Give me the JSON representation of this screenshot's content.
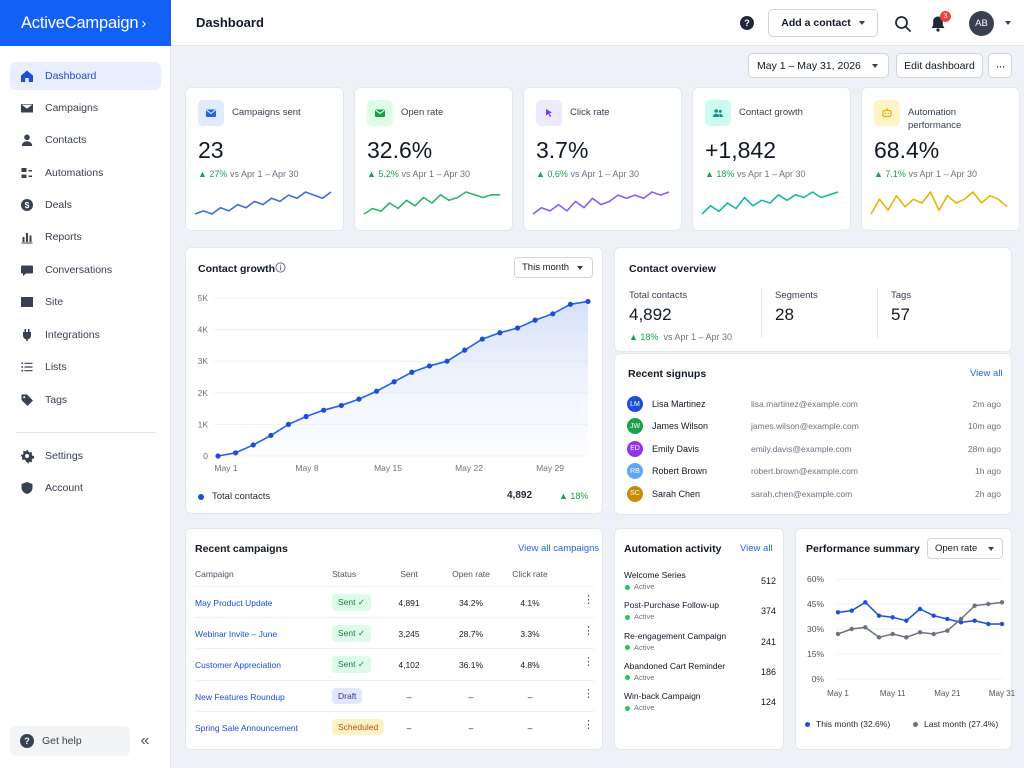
{
  "app": {
    "logo_text": "ActiveCampaign",
    "logo_mark": "›"
  },
  "sidebar": {
    "items": [
      {
        "label": "Dashboard",
        "icon": "home-icon",
        "active": true
      },
      {
        "label": "Campaigns",
        "icon": "mail-icon"
      },
      {
        "label": "Contacts",
        "icon": "person-icon"
      },
      {
        "label": "Automations",
        "icon": "automation-icon"
      },
      {
        "label": "Deals",
        "icon": "dollar-icon"
      },
      {
        "label": "Reports",
        "icon": "bar-chart-icon"
      },
      {
        "label": "Conversations",
        "icon": "chat-icon"
      },
      {
        "label": "Site",
        "icon": "browser-icon"
      },
      {
        "label": "Integrations",
        "icon": "plug-icon"
      },
      {
        "label": "Lists",
        "icon": "list-icon"
      },
      {
        "label": "Tags",
        "icon": "tag-icon"
      }
    ],
    "bottom_items": [
      {
        "label": "Settings",
        "icon": "gear-icon"
      },
      {
        "label": "Account",
        "icon": "shield-icon"
      }
    ],
    "help_label": "Get help",
    "collapse_glyph": "«"
  },
  "header": {
    "title": "Dashboard",
    "help_glyph": "?",
    "add_contact_label": "Add a contact",
    "notification_count": "3",
    "avatar_initials": "AB"
  },
  "toolbar": {
    "date_range": "May 1 – May 31, 2026",
    "edit_label": "Edit dashboard",
    "more_glyph": "···"
  },
  "kpis": [
    {
      "label": "Campaigns sent",
      "value": "23",
      "delta": "27%",
      "period": "vs Apr 1 – Apr 30",
      "icon": "mail-icon",
      "color": "#2563eb",
      "bg": "#e0ebff"
    },
    {
      "label": "Open rate",
      "value": "32.6%",
      "delta": "5.2%",
      "period": "vs Apr 1 – Apr 30",
      "icon": "mail-open-icon",
      "color": "#16a34a",
      "bg": "#dcfce7"
    },
    {
      "label": "Click rate",
      "value": "3.7%",
      "delta": "0.6%",
      "period": "vs Apr 1 – Apr 30",
      "icon": "cursor-click-icon",
      "color": "#7c3aed",
      "bg": "#ede9fe"
    },
    {
      "label": "Contact growth",
      "value": "+1,842",
      "delta": "18%",
      "period": "vs Apr 1 – Apr 30",
      "icon": "people-icon",
      "color": "#0d9488",
      "bg": "#ccfbf1"
    },
    {
      "label": "Automation performance",
      "value": "68.4%",
      "delta": "7.1%",
      "period": "vs Apr 1 – Apr 30",
      "icon": "robot-icon",
      "color": "#eab308",
      "bg": "#fef3c7"
    }
  ],
  "contact_growth": {
    "title": "Contact growth",
    "range_select": "This month",
    "legend_label": "Total contacts",
    "legend_value": "4,892",
    "legend_delta": "18%"
  },
  "contact_overview": {
    "title": "Contact overview",
    "stats": [
      {
        "label": "Total contacts",
        "value": "4,892"
      },
      {
        "label": "Segments",
        "value": "28"
      },
      {
        "label": "Tags",
        "value": "57"
      }
    ],
    "total_delta": "18%",
    "total_period": "vs Apr 1 – Apr 30"
  },
  "recent_signups": {
    "title": "Recent signups",
    "view_all": "View all",
    "rows": [
      {
        "initials": "LM",
        "name": "Lisa Martinez",
        "email": "lisa.martinez@example.com",
        "time": "2m ago",
        "color": "#1d4ed8"
      },
      {
        "initials": "JW",
        "name": "James Wilson",
        "email": "james.wilson@example.com",
        "time": "10m ago",
        "color": "#16a34a"
      },
      {
        "initials": "ED",
        "name": "Emily Davis",
        "email": "emily.davis@example.com",
        "time": "28m ago",
        "color": "#9333ea"
      },
      {
        "initials": "RB",
        "name": "Robert Brown",
        "email": "robert.brown@example.com",
        "time": "1h ago",
        "color": "#60a5fa"
      },
      {
        "initials": "SC",
        "name": "Sarah Chen",
        "email": "sarah.chen@example.com",
        "time": "2h ago",
        "color": "#ca8a04"
      }
    ]
  },
  "recent_campaigns": {
    "title": "Recent campaigns",
    "view_all": "View all campaigns",
    "columns": [
      "Campaign",
      "Status",
      "Sent",
      "Open rate",
      "Click rate"
    ],
    "rows": [
      {
        "name": "May Product Update",
        "status": "Sent ✓",
        "status_type": "sent",
        "sent": "4,891",
        "open": "34.2%",
        "click": "4.1%"
      },
      {
        "name": "Webinar Invite – June",
        "status": "Sent ✓",
        "status_type": "sent",
        "sent": "3,245",
        "open": "28.7%",
        "click": "3.3%"
      },
      {
        "name": "Customer Appreciation",
        "status": "Sent ✓",
        "status_type": "sent",
        "sent": "4,102",
        "open": "36.1%",
        "click": "4.8%"
      },
      {
        "name": "New Features Roundup",
        "status": "Draft",
        "status_type": "draft",
        "sent": "–",
        "open": "–",
        "click": "–"
      },
      {
        "name": "Spring Sale Announcement",
        "status": "Scheduled",
        "status_type": "sched",
        "sent": "–",
        "open": "–",
        "click": "–"
      }
    ]
  },
  "automation_activity": {
    "title": "Automation activity",
    "view_all": "View all",
    "rows": [
      {
        "name": "Welcome Series",
        "status": "Active",
        "count": "512"
      },
      {
        "name": "Post-Purchase Follow-up",
        "status": "Active",
        "count": "374"
      },
      {
        "name": "Re-engagement Campaign",
        "status": "Active",
        "count": "241"
      },
      {
        "name": "Abandoned Cart Reminder",
        "status": "Active",
        "count": "186"
      },
      {
        "name": "Win-back Campaign",
        "status": "Active",
        "count": "124"
      }
    ]
  },
  "performance_summary": {
    "title": "Performance summary",
    "metric_select": "Open rate",
    "legend_this": "This month (32.6%)",
    "legend_last": "Last month (27.4%)"
  },
  "chart_data": [
    {
      "type": "line",
      "title": "Contact growth",
      "x_ticks": [
        "May 1",
        "May 8",
        "May 15",
        "May 22",
        "May 29"
      ],
      "y_ticks": [
        "5K",
        "4K",
        "3K",
        "2K",
        "1K",
        "0"
      ],
      "ylim": [
        0,
        5000
      ],
      "x": [
        1,
        2,
        3,
        4,
        5,
        6,
        7,
        8,
        9,
        10,
        11,
        12,
        13,
        14,
        15,
        16,
        17,
        18,
        19,
        20,
        21,
        22
      ],
      "series": [
        {
          "name": "Total contacts",
          "color": "#2563eb",
          "values": [
            0,
            100,
            350,
            650,
            1000,
            1250,
            1450,
            1600,
            1800,
            2050,
            2350,
            2650,
            2850,
            3000,
            3350,
            3700,
            3900,
            4050,
            4300,
            4500,
            4800,
            4892
          ]
        }
      ],
      "grid": true
    },
    {
      "type": "line",
      "title": "Performance summary",
      "x_ticks": [
        "May 1",
        "May 11",
        "May 21",
        "May 31"
      ],
      "y_ticks": [
        "60%",
        "45%",
        "30%",
        "15%",
        "0%"
      ],
      "ylim": [
        0,
        60
      ],
      "series": [
        {
          "name": "This month (32.6%)",
          "color": "#1d4ed8",
          "values": [
            40,
            41,
            46,
            38,
            37,
            35,
            42,
            38,
            36,
            34,
            35,
            33,
            33
          ]
        },
        {
          "name": "Last month (27.4%)",
          "color": "#6b7280",
          "values": [
            27,
            30,
            31,
            25,
            27,
            25,
            28,
            27,
            29,
            36,
            44,
            45,
            46
          ]
        }
      ],
      "grid": true
    },
    {
      "type": "line",
      "title": "",
      "series": [
        {
          "color": "#3b6fd9",
          "values": [
            6,
            7,
            6,
            8,
            7,
            9,
            8,
            10,
            9,
            11,
            10,
            12,
            11,
            13,
            12,
            11,
            13
          ]
        }
      ]
    },
    {
      "type": "line",
      "title": "",
      "series": [
        {
          "color": "#2fb46a",
          "values": [
            5,
            7,
            6,
            9,
            7,
            10,
            8,
            11,
            9,
            12,
            10,
            11,
            13,
            12,
            11,
            12,
            12
          ]
        }
      ]
    },
    {
      "type": "line",
      "title": "",
      "series": [
        {
          "color": "#8b5cf6",
          "values": [
            6,
            8,
            7,
            9,
            7,
            10,
            8,
            11,
            9,
            10,
            12,
            11,
            12,
            11,
            13,
            12,
            13
          ]
        }
      ]
    },
    {
      "type": "line",
      "title": "",
      "series": [
        {
          "color": "#14b8a6",
          "values": [
            5,
            8,
            6,
            9,
            7,
            11,
            8,
            10,
            9,
            12,
            10,
            12,
            11,
            13,
            11,
            12,
            13
          ]
        }
      ]
    },
    {
      "type": "line",
      "title": "",
      "series": [
        {
          "color": "#eab308",
          "values": [
            6,
            10,
            7,
            11,
            8,
            10,
            9,
            12,
            7,
            11,
            9,
            10,
            12,
            9,
            11,
            10,
            8
          ]
        }
      ]
    }
  ]
}
